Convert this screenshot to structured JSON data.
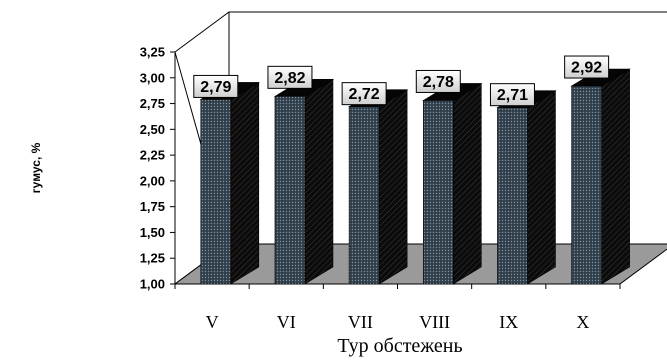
{
  "chart_data": {
    "type": "bar",
    "title": "",
    "xlabel": "Тур обстежень",
    "ylabel": "гумус, %",
    "categories": [
      "V",
      "VI",
      "VII",
      "VIII",
      "IX",
      "X"
    ],
    "values": [
      2.79,
      2.82,
      2.72,
      2.78,
      2.71,
      2.92
    ],
    "data_labels": [
      "2,79",
      "2,82",
      "2,72",
      "2,78",
      "2,71",
      "2,92"
    ],
    "yticks": [
      "1,00",
      "1,25",
      "1,50",
      "1,75",
      "2,00",
      "2,25",
      "2,50",
      "2,75",
      "3,00",
      "3,25"
    ],
    "ylim": [
      1.0,
      3.25
    ],
    "grid": false,
    "legend": "none",
    "colors": {
      "bar_front": "#2f3d48",
      "bar_front_dots": "#6f8290",
      "bar_side": "#0c0c0c",
      "floor": "#9a9a9a",
      "label_fill": "#e8e8e8"
    }
  }
}
